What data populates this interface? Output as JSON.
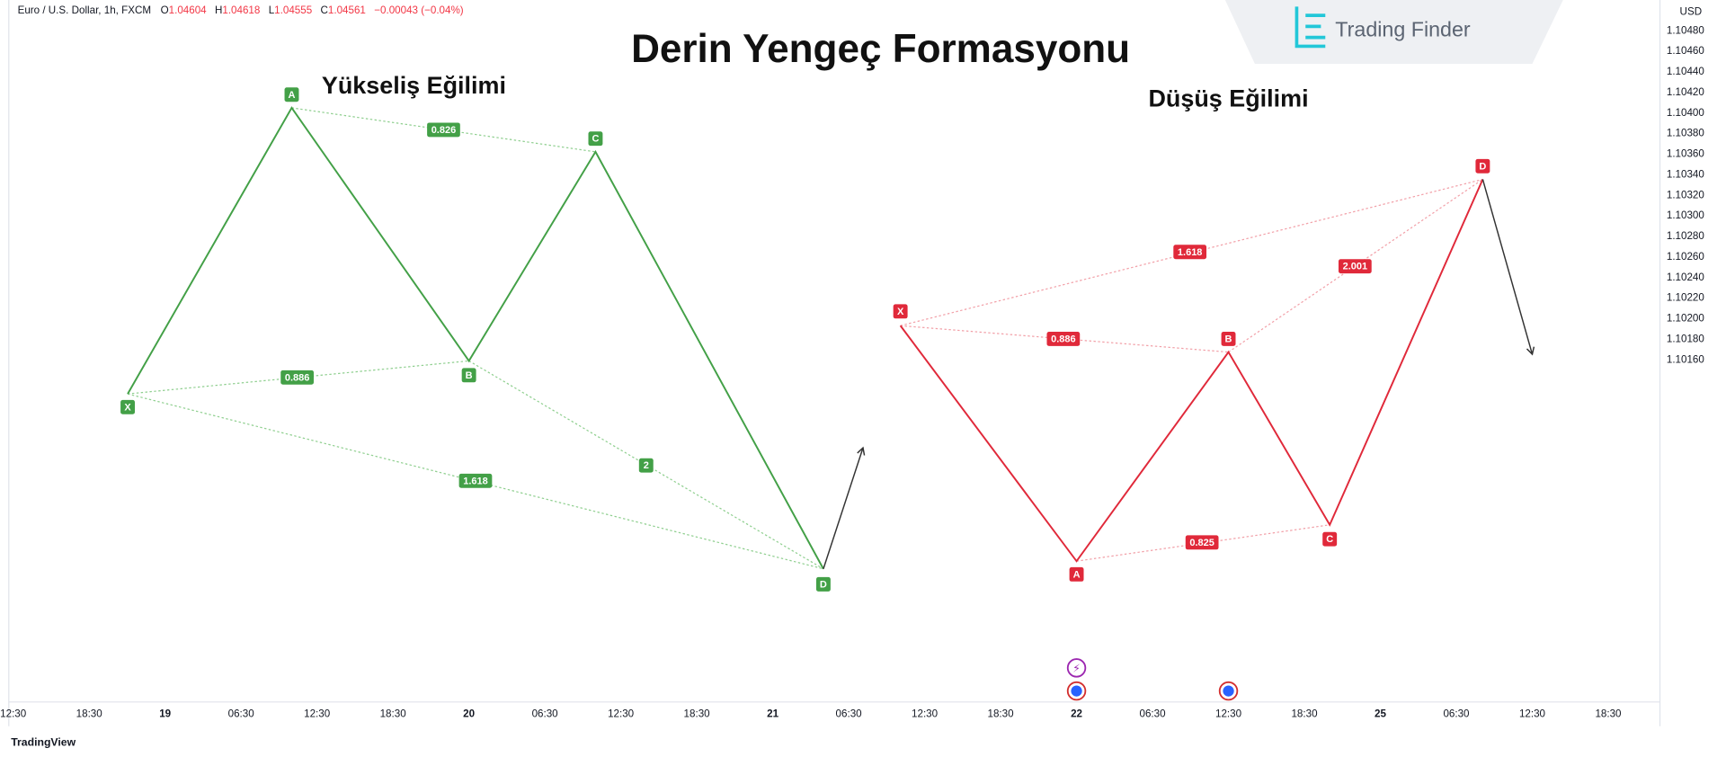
{
  "header": {
    "symbol": "Euro / U.S. Dollar, 1h, FXCM",
    "ohlc": [
      {
        "label": "O",
        "value": "1.04604"
      },
      {
        "label": "H",
        "value": "1.04618"
      },
      {
        "label": "L",
        "value": "1.04555"
      },
      {
        "label": "C",
        "value": "1.04561"
      }
    ],
    "change": "−0.00043 (−0.04%)"
  },
  "title": "Derin Yengeç Formasyonu",
  "logo": "Trading Finder",
  "bullish": {
    "label": "Yükseliş Eğilimi",
    "points": [
      "X",
      "A",
      "B",
      "C",
      "D"
    ],
    "ratios": [
      "0.826",
      "0.886",
      "1.618",
      "2"
    ]
  },
  "bearish": {
    "label": "Düşüş Eğilimi",
    "points": [
      "X",
      "A",
      "B",
      "C",
      "D"
    ],
    "ratios": [
      "1.618",
      "0.886",
      "2.001",
      "0.825"
    ]
  },
  "price_axis": {
    "currency": "USD",
    "ticks": [
      "1.10480",
      "1.10460",
      "1.10440",
      "1.10420",
      "1.10400",
      "1.10380",
      "1.10360",
      "1.10340",
      "1.10320",
      "1.10300",
      "1.10280",
      "1.10260",
      "1.10240",
      "1.10220",
      "1.10200",
      "1.10180",
      "1.10160"
    ]
  },
  "time_axis": {
    "ticks": [
      "12:30",
      "18:30",
      "19",
      "06:30",
      "12:30",
      "18:30",
      "20",
      "06:30",
      "12:30",
      "18:30",
      "21",
      "06:30",
      "12:30",
      "18:30",
      "22",
      "06:30",
      "12:30",
      "18:30",
      "25",
      "06:30",
      "12:30",
      "18:30"
    ]
  },
  "footer": "TradingView"
}
